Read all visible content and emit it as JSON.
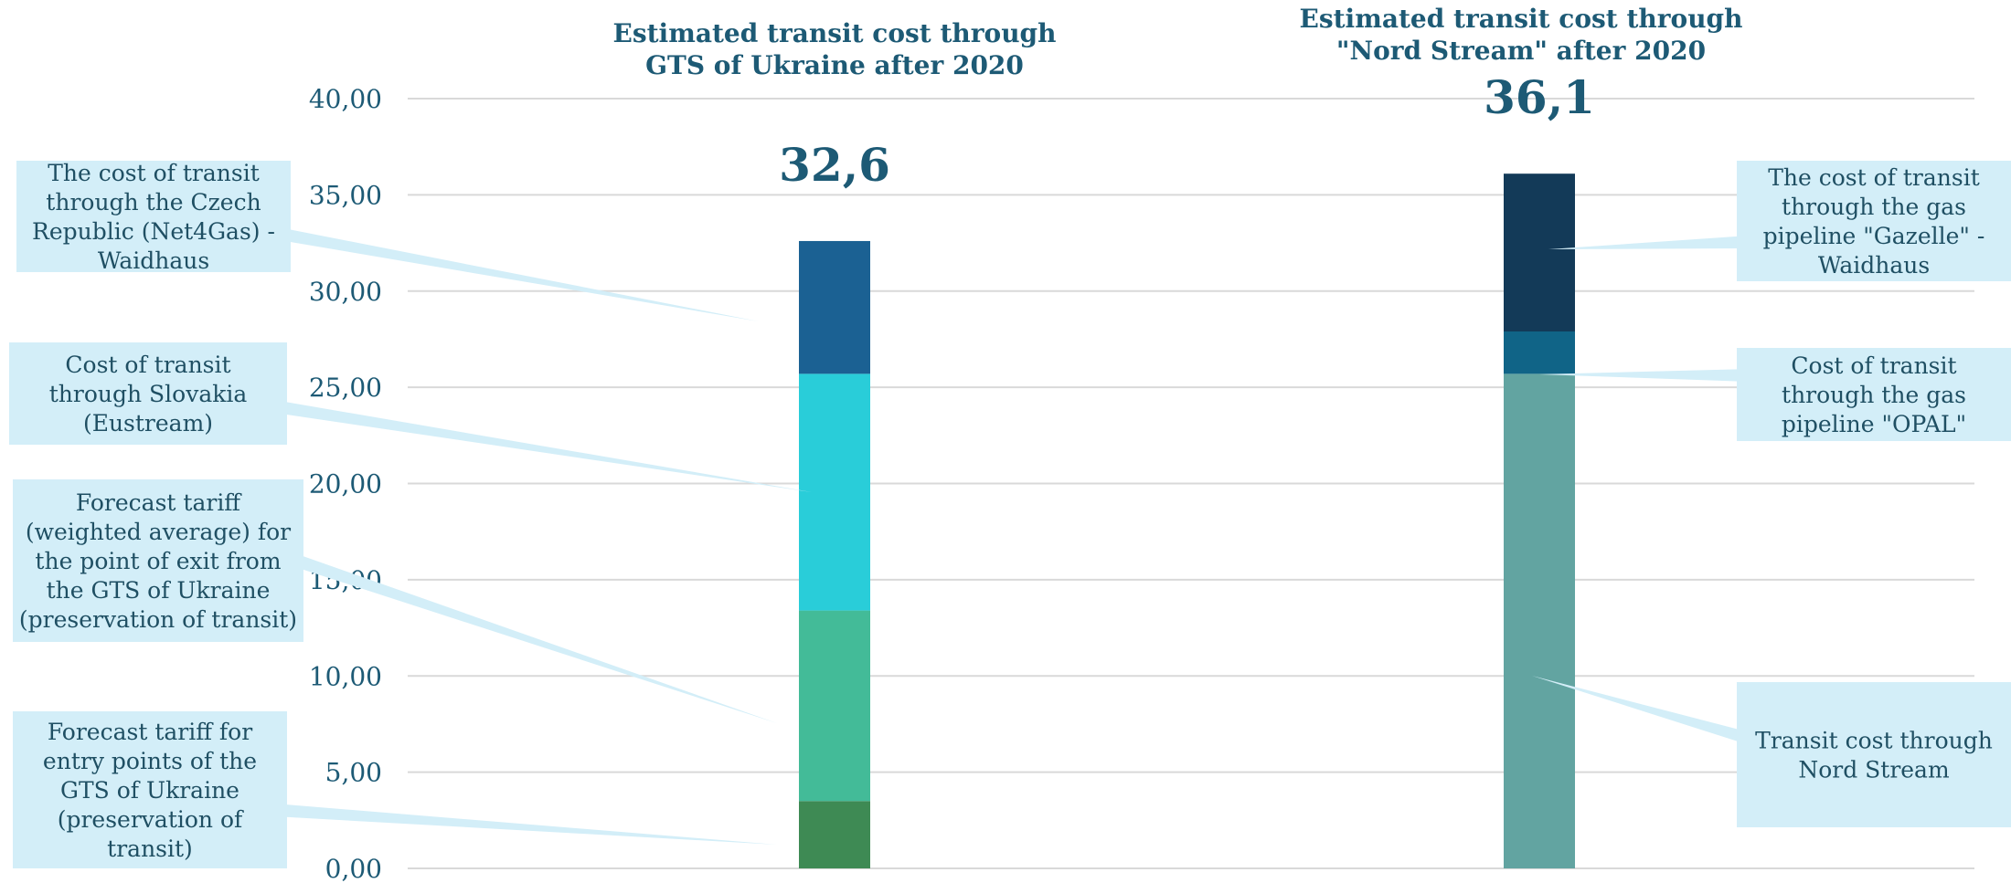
{
  "chart_data": {
    "type": "bar",
    "stacked": true,
    "ylim": [
      0,
      40
    ],
    "yticks": [
      "0,00",
      "5,00",
      "10,00",
      "15,00",
      "20,00",
      "25,00",
      "30,00",
      "35,00",
      "40,00"
    ],
    "grid": true,
    "bars": [
      {
        "title": "Estimated transit cost through GTS of Ukraine after 2020",
        "title_lines": [
          "Estimated transit cost through",
          "GTS of Ukraine after 2020"
        ],
        "total_label": "32,6",
        "total": 32.6,
        "segments": [
          {
            "name": "Forecast tariff for entry points of the GTS of Ukraine (preservation of transit)",
            "value": 3.5,
            "color": "#3e8a54"
          },
          {
            "name": "Forecast tariff (weighted average) for the point of exit from the GTS of Ukraine (preservation of transit)",
            "value": 9.9,
            "color": "#43bb98"
          },
          {
            "name": "Cost of transit through Slovakia (Eustream)",
            "value": 12.3,
            "color": "#29cdd9"
          },
          {
            "name": "The cost of transit through the Czech Republic (Net4Gas) - Waidhaus",
            "value": 6.9,
            "color": "#1b6193"
          }
        ]
      },
      {
        "title": "Estimated transit cost through \"Nord Stream\" after 2020",
        "title_lines": [
          "Estimated transit cost through",
          "\"Nord Stream\" after 2020"
        ],
        "total_label": "36,1",
        "total": 36.1,
        "segments": [
          {
            "name": "Transit cost through Nord Stream",
            "value": 25.7,
            "color": "#62a4a1"
          },
          {
            "name": "Cost of transit through the gas pipeline \"OPAL\"",
            "value": 2.2,
            "color": "#106487"
          },
          {
            "name": "The cost of transit through the gas pipeline \"Gazelle\" - Waidhaus",
            "value": 8.2,
            "color": "#133a58"
          }
        ]
      }
    ],
    "callouts": [
      {
        "lines": [
          "The cost of transit",
          "through the Czech",
          "Republic (Net4Gas) -",
          "Waidhaus"
        ]
      },
      {
        "lines": [
          "Cost of transit",
          "through Slovakia",
          "(Eustream)"
        ]
      },
      {
        "lines": [
          "Forecast tariff",
          "(weighted average) for",
          "the point of exit from",
          "the GTS of Ukraine",
          "(preservation of transit)"
        ]
      },
      {
        "lines": [
          "Forecast tariff for",
          "entry points of the",
          "GTS of Ukraine",
          "(preservation of",
          "transit)"
        ]
      },
      {
        "lines": [
          "The cost of transit",
          "through the gas",
          "pipeline \"Gazelle\" -",
          "Waidhaus"
        ]
      },
      {
        "lines": [
          "Cost of transit",
          "through the gas",
          "pipeline \"OPAL\""
        ]
      },
      {
        "lines": [
          "Transit cost through",
          "Nord Stream"
        ]
      }
    ],
    "colors": {
      "grid": "#d9d9d9",
      "callout_fill": "#d3eef8",
      "text": "#1d5a75"
    }
  }
}
